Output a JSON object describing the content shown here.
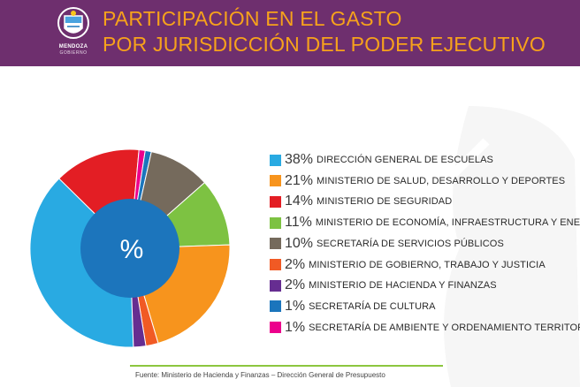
{
  "header": {
    "title_line1": "PARTICIPACIÓN EN EL GASTO",
    "title_line2": "POR JURISDICCIÓN DEL PODER EJECUTIVO",
    "logo_line1": "MENDOZA",
    "logo_line2": "GOBIERNO"
  },
  "colors": {
    "header_bg": "#6e2f6e",
    "title": "#f7a21b",
    "source_rule": "#8cc63f"
  },
  "chart_data": {
    "type": "pie",
    "style": "donut",
    "center_label": "%",
    "legend_position": "right",
    "slices": [
      {
        "pct": "38%",
        "value": 38,
        "label": "DIRECCIÓN GENERAL DE ESCUELAS",
        "color": "#29aae2"
      },
      {
        "pct": "21%",
        "value": 21,
        "label": "MINISTERIO DE SALUD, DESARROLLO Y DEPORTES",
        "color": "#f7941d"
      },
      {
        "pct": "14%",
        "value": 14,
        "label": "MINISTERIO DE SEGURIDAD",
        "color": "#e31e24"
      },
      {
        "pct": "11%",
        "value": 11,
        "label": "MINISTERIO DE ECONOMÍA, INFRAESTRUCTURA Y ENERGÍA",
        "color": "#7dc242"
      },
      {
        "pct": "10%",
        "value": 10,
        "label": "SECRETARÍA DE SERVICIOS PÚBLICOS",
        "color": "#756a5c"
      },
      {
        "pct": "2%",
        "value": 2,
        "label": "MINISTERIO DE GOBIERNO, TRABAJO Y JUSTICIA",
        "color": "#f15a24"
      },
      {
        "pct": "2%",
        "value": 2,
        "label": "MINISTERIO DE HACIENDA Y FINANZAS",
        "color": "#662d91"
      },
      {
        "pct": "1%",
        "value": 1,
        "label": "SECRETARÍA DE CULTURA",
        "color": "#1b75bc"
      },
      {
        "pct": "1%",
        "value": 1,
        "label": "SECRETARÍA DE AMBIENTE Y ORDENAMIENTO TERRITORIAL",
        "color": "#ec008c"
      }
    ]
  },
  "footer": {
    "source": "Fuente: Ministerio de Hacienda y Finanzas – Dirección General de Presupuesto"
  }
}
